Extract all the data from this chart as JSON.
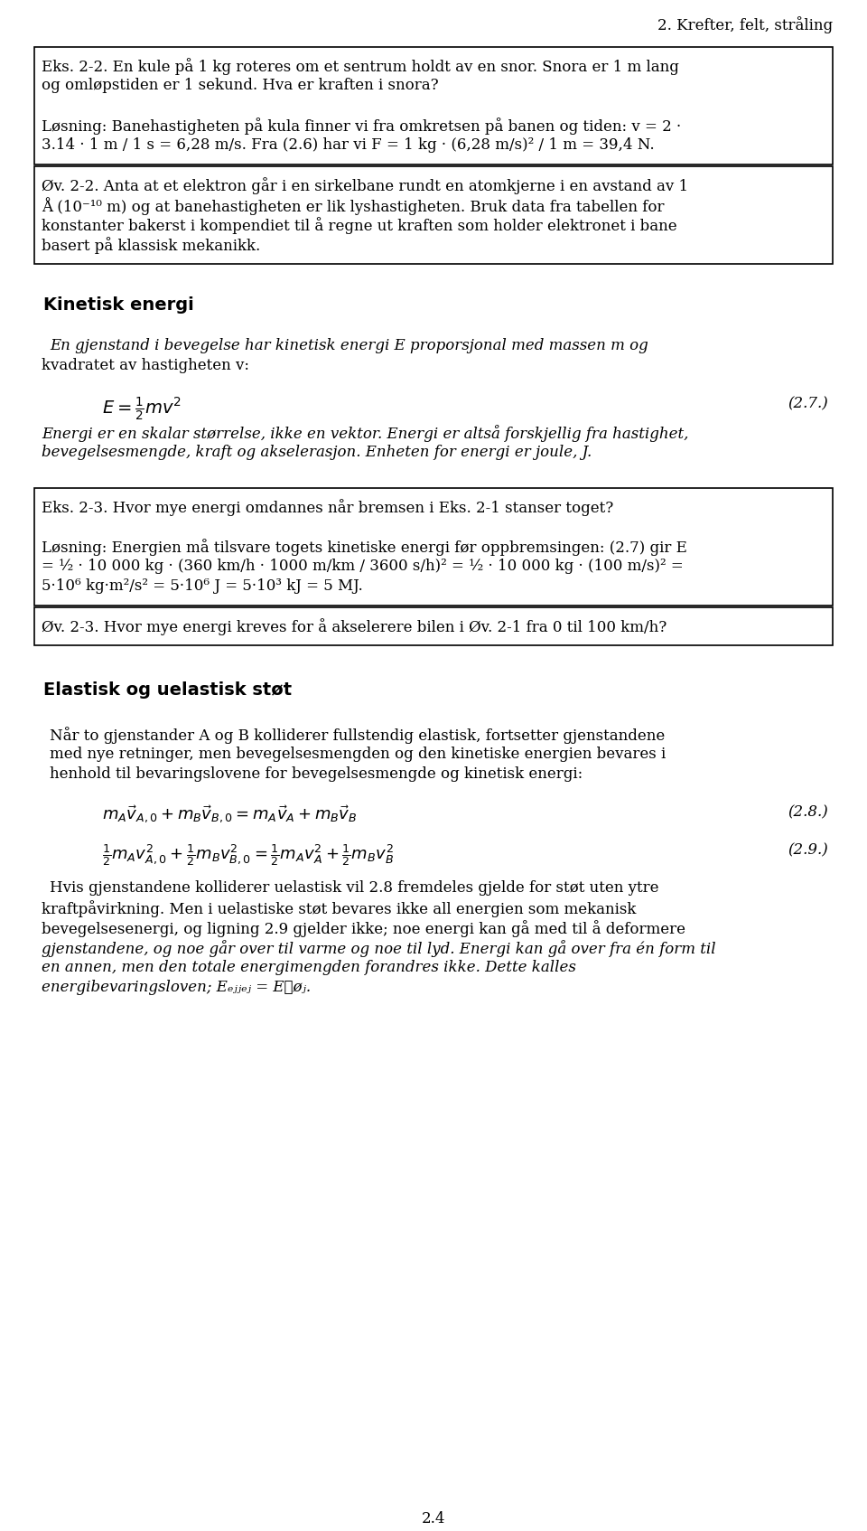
{
  "background": "#ffffff",
  "page_title": "2. Krefter, felt, stråling",
  "page_number": "2.4",
  "box1_lines": [
    "Eks. 2-2. En kule på 1 kg roteres om et sentrum holdt av en snor. Snora er 1 m lang",
    "og omløpstiden er 1 sekund. Hva er kraften i snora?",
    "",
    "Løsning: Banehastigheten på kula finner vi fra omkretsen på banen og tiden: v = 2 ·",
    "3.14 · 1 m / 1 s = 6,28 m/s. Fra (2.6) har vi F = 1 kg · (6,28 m/s)² / 1 m = 39,4 N."
  ],
  "box2_lines": [
    "Øv. 2-2. Anta at et elektron går i en sirkelbane rundt en atomkjerne i en avstand av 1",
    "Å (10⁻¹⁰ m) og at banehastigheten er lik lyshastigheten. Bruk data fra tabellen for",
    "konstanter bakerst i kompendiet til å regne ut kraften som holder elektronet i bane",
    "basert på klassisk mekanikk."
  ],
  "section1": "Kinetisk energi",
  "para1_line1": "En gjenstand i bevegelse har kinetisk energi E proporsjonal med massen m og",
  "para1_line2": "kvadratet av hastigheten v:",
  "eq1_right": "(2.7.)",
  "para2_line1": "Energi er en skalar størrelse, ikke en vektor. Energi er altså forskjellig fra hastighet,",
  "para2_line2": "bevegelsesmengde, kraft og akselerasjon. Enheten for energi er joule, J.",
  "box3_lines": [
    "Eks. 2-3. Hvor mye energi omdannes når bremsen i Eks. 2-1 stanser toget?",
    "",
    "Løsning: Energien må tilsvare togets kinetiske energi før oppbremsingen: (2.7) gir E",
    "= ½ · 10 000 kg · (360 km/h · 1000 m/km / 3600 s/h)² = ½ · 10 000 kg · (100 m/s)² =",
    "5·10⁶ kg·m²/s² = 5·10⁶ J = 5·10³ kJ = 5 MJ."
  ],
  "box4_lines": [
    "Øv. 2-3. Hvor mye energi kreves for å akselerere bilen i Øv. 2-1 fra 0 til 100 km/h?"
  ],
  "section2": "Elastisk og uelastisk støt",
  "para3_lines": [
    "Når to gjenstander A og B kolliderer fullstendig elastisk, fortsetter gjenstandene",
    "med nye retninger, men bevegelsesmengden og den kinetiske energien bevares i",
    "henhold til bevaringslovene for bevegelsesmengde og kinetisk energi:"
  ],
  "eq2_right": "(2.8.)",
  "eq3_right": "(2.9.)",
  "para4_lines": [
    "Hvis gjenstandene kolliderer uelastisk vil 2.8 fremdeles gjelde for støt uten ytre",
    "kraftpåvirkning. Men i uelastiske støt bevares ikke all energien som mekanisk",
    "bevegelsesenergi, og ligning 2.9 gjelder ikke; noe energi kan gå med til å deformere",
    "gjenstandene, og noe går over til varme og noe til lyd. Energi kan gå over fra én form til",
    "en annen, men den totale energimengden forandres ikke. Dette kalles"
  ],
  "para4_last": "energibevaringsloven; Eₑⱼⱼₑⱼ = E℀øⱼ."
}
